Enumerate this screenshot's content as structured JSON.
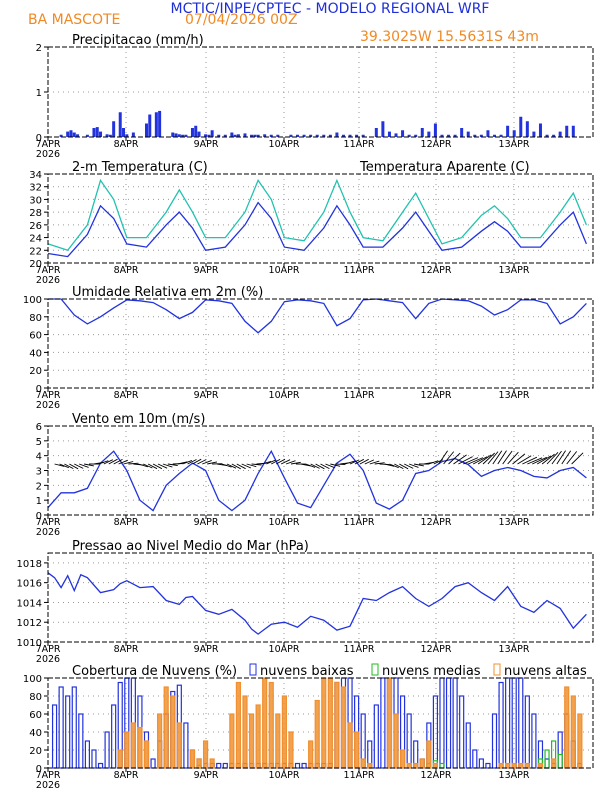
{
  "header": {
    "line1": "MCTIC/INPE/CPTEC - MODELO REGIONAL WRF",
    "station": "BA MASCOTE",
    "run": "07/04/2026 00Z",
    "location": "39.3025W 15.5631S 43m"
  },
  "colors": {
    "header_blue": "#1f2fd8",
    "header_orange": "#f08a24",
    "series_blue": "#2233dd",
    "series_teal": "#22c2b0",
    "cloud_low": "#2233dd",
    "cloud_mid": "#22bb22",
    "cloud_high": "#f09030"
  },
  "x_axis": {
    "labels": [
      "7APR",
      "8APR",
      "9APR",
      "10APR",
      "11APR",
      "12APR",
      "13APR"
    ],
    "year": "2026"
  },
  "chart_data": [
    {
      "type": "bar",
      "title": "Precipitacao (mm/h)",
      "ylim": [
        0,
        2
      ],
      "yticks": [
        0,
        1,
        2
      ],
      "grid": true,
      "x_unit": "hours since 7APR 00Z",
      "x": [
        4,
        6,
        7,
        8,
        9,
        12,
        14,
        15,
        16,
        18,
        19,
        20,
        22,
        23,
        24,
        26,
        30,
        31,
        33,
        34,
        38,
        39,
        40,
        41,
        42,
        44,
        45,
        46,
        48,
        49,
        50,
        52,
        54,
        56,
        57,
        58,
        60,
        62,
        63,
        64,
        66,
        68,
        70,
        74,
        76,
        78,
        80,
        82,
        84,
        86,
        88,
        90,
        92,
        94,
        96,
        100,
        102,
        104,
        106,
        108,
        110,
        112,
        114,
        116,
        118,
        120,
        122,
        124,
        126,
        128,
        130,
        132,
        134,
        136,
        138,
        140,
        142,
        144,
        146,
        148,
        150,
        152,
        154,
        156,
        158,
        160
      ],
      "values": [
        0.05,
        0.12,
        0.15,
        0.1,
        0.06,
        0.05,
        0.2,
        0.22,
        0.12,
        0.06,
        0.05,
        0.35,
        0.55,
        0.2,
        0.06,
        0.1,
        0.3,
        0.5,
        0.55,
        0.58,
        0.1,
        0.08,
        0.06,
        0.05,
        0.05,
        0.2,
        0.25,
        0.12,
        0.06,
        0.05,
        0.15,
        0.05,
        0.05,
        0.1,
        0.05,
        0.06,
        0.08,
        0.05,
        0.05,
        0.05,
        0.06,
        0.05,
        0.05,
        0.05,
        0.05,
        0.05,
        0.05,
        0.05,
        0.05,
        0.05,
        0.1,
        0.05,
        0.05,
        0.05,
        0.05,
        0.2,
        0.35,
        0.12,
        0.08,
        0.15,
        0.05,
        0.05,
        0.2,
        0.12,
        0.3,
        0.05,
        0.05,
        0.05,
        0.2,
        0.12,
        0.05,
        0.05,
        0.15,
        0.05,
        0.05,
        0.25,
        0.15,
        0.45,
        0.35,
        0.12,
        0.3,
        0.05,
        0.05,
        0.12,
        0.25,
        0.25
      ]
    },
    {
      "type": "line",
      "title": "2-m Temperatura (C)",
      "ylim": [
        20,
        34
      ],
      "yticks": [
        20,
        22,
        24,
        26,
        28,
        30,
        32,
        34
      ],
      "grid": true,
      "x_unit": "hours since 7APR 00Z",
      "series": [
        {
          "name": "Temperatura Aparente (C)",
          "color": "#22c2b0",
          "x": [
            0,
            6,
            12,
            16,
            20,
            24,
            30,
            36,
            40,
            44,
            48,
            54,
            60,
            64,
            68,
            72,
            78,
            84,
            88,
            92,
            96,
            102,
            108,
            112,
            116,
            120,
            126,
            132,
            136,
            140,
            144,
            150,
            156,
            160,
            164
          ],
          "y": [
            23,
            22,
            26,
            33,
            30,
            24,
            24,
            28,
            31.5,
            28,
            24,
            24,
            28,
            33,
            30,
            24,
            23.5,
            28,
            33,
            28,
            24,
            23.5,
            28,
            31,
            27,
            23,
            24,
            27.5,
            29,
            27,
            24,
            24,
            28,
            31,
            26
          ]
        },
        {
          "name": "",
          "color": "#2233dd",
          "x": [
            0,
            6,
            12,
            16,
            20,
            24,
            30,
            36,
            40,
            44,
            48,
            54,
            60,
            64,
            68,
            72,
            78,
            84,
            88,
            92,
            96,
            102,
            108,
            112,
            116,
            120,
            126,
            132,
            136,
            140,
            144,
            150,
            156,
            160,
            164
          ],
          "y": [
            21.5,
            21,
            24.5,
            29,
            27,
            23,
            22.5,
            26,
            28,
            25.5,
            22,
            22.5,
            26,
            29.5,
            27,
            22.5,
            22,
            25.5,
            29,
            26,
            22.5,
            22.5,
            25.5,
            28,
            25,
            22,
            22.5,
            25,
            26.5,
            25,
            22.5,
            22.5,
            26,
            28,
            23
          ]
        }
      ]
    },
    {
      "type": "line",
      "title": "Umidade Relativa em 2m (%)",
      "ylim": [
        0,
        100
      ],
      "yticks": [
        0,
        20,
        40,
        60,
        80,
        100
      ],
      "grid": true,
      "x_unit": "hours since 7APR 00Z",
      "series": [
        {
          "name": "",
          "color": "#2233dd",
          "x": [
            0,
            4,
            8,
            12,
            16,
            20,
            24,
            28,
            32,
            36,
            40,
            44,
            48,
            52,
            56,
            60,
            64,
            68,
            72,
            76,
            80,
            84,
            88,
            92,
            96,
            100,
            104,
            108,
            112,
            116,
            120,
            124,
            128,
            132,
            136,
            140,
            144,
            148,
            152,
            156,
            160,
            164
          ],
          "y": [
            100,
            100,
            82,
            72,
            80,
            90,
            99,
            98,
            96,
            88,
            78,
            85,
            99,
            98,
            95,
            75,
            62,
            75,
            97,
            99,
            98,
            95,
            70,
            78,
            99,
            100,
            98,
            96,
            78,
            95,
            100,
            99,
            98,
            92,
            82,
            88,
            99,
            99,
            95,
            72,
            80,
            95
          ]
        }
      ]
    },
    {
      "type": "line",
      "title": "Vento em 10m (m/s)",
      "ylim": [
        0,
        6
      ],
      "yticks": [
        0,
        1,
        2,
        3,
        4,
        5,
        6
      ],
      "grid": true,
      "x_unit": "hours since 7APR 00Z",
      "series": [
        {
          "name": "",
          "color": "#2233dd",
          "x": [
            0,
            4,
            8,
            12,
            16,
            20,
            24,
            28,
            32,
            36,
            40,
            44,
            48,
            52,
            56,
            60,
            64,
            68,
            72,
            76,
            80,
            84,
            88,
            92,
            96,
            100,
            104,
            108,
            112,
            116,
            120,
            124,
            128,
            132,
            136,
            140,
            144,
            148,
            152,
            156,
            160,
            164
          ],
          "y": [
            0.5,
            1.5,
            1.5,
            1.8,
            3.5,
            4.3,
            3,
            1,
            0.3,
            2,
            2.8,
            3.5,
            3,
            1,
            0.3,
            1,
            2.8,
            4.3,
            2.5,
            0.8,
            0.5,
            2,
            3.5,
            4.1,
            3,
            0.8,
            0.4,
            1,
            2.8,
            3,
            3.6,
            3.8,
            3.4,
            2.6,
            3,
            3.2,
            3,
            2.6,
            2.5,
            3,
            3.2,
            2.5
          ]
        }
      ]
    },
    {
      "type": "line",
      "title": "Pressao ao Nivel Medio do Mar (hPa)",
      "ylim": [
        1010,
        1019
      ],
      "yticks": [
        1010,
        1012,
        1014,
        1016,
        1018
      ],
      "grid": true,
      "x_unit": "hours since 7APR 00Z",
      "series": [
        {
          "name": "",
          "color": "#2233dd",
          "x": [
            0,
            2,
            4,
            6,
            8,
            10,
            12,
            16,
            20,
            22,
            24,
            28,
            32,
            36,
            40,
            42,
            44,
            48,
            52,
            56,
            60,
            62,
            64,
            68,
            72,
            76,
            80,
            84,
            88,
            92,
            96,
            100,
            104,
            108,
            112,
            116,
            120,
            124,
            128,
            132,
            136,
            140,
            144,
            148,
            152,
            156,
            160,
            164
          ],
          "y": [
            1017,
            1016.5,
            1015.5,
            1016.7,
            1015.2,
            1016.8,
            1016.5,
            1015,
            1015.3,
            1015.9,
            1016.2,
            1015.5,
            1015.6,
            1014.2,
            1013.8,
            1014.5,
            1014.6,
            1013.2,
            1012.8,
            1013.3,
            1012.2,
            1011.3,
            1010.8,
            1011.8,
            1012,
            1011.5,
            1012.6,
            1012.2,
            1011.2,
            1011.6,
            1014.4,
            1014.2,
            1015,
            1015.6,
            1014.4,
            1013.6,
            1014.4,
            1015.6,
            1016,
            1015,
            1014.2,
            1015.6,
            1013.6,
            1013,
            1014.2,
            1013.4,
            1011.4,
            1012.8
          ]
        }
      ]
    },
    {
      "type": "bar",
      "title": "Cobertura de Nuvens (%)",
      "ylim": [
        0,
        100
      ],
      "yticks": [
        0,
        20,
        40,
        60,
        80,
        100
      ],
      "grid": true,
      "x_unit": "hours since 7APR 00Z",
      "legend": [
        "nuvens baixas",
        "nuvens medias",
        "nuvens altas"
      ],
      "series": [
        {
          "name": "nuvens baixas",
          "color": "#2233dd",
          "x": [
            2,
            4,
            6,
            8,
            10,
            12,
            14,
            16,
            18,
            20,
            22,
            24,
            26,
            28,
            30,
            32,
            34,
            36,
            38,
            40,
            42,
            44,
            46,
            48,
            50,
            52,
            54,
            56,
            58,
            60,
            62,
            64,
            66,
            68,
            70,
            72,
            74,
            76,
            78,
            80,
            82,
            84,
            86,
            88,
            90,
            92,
            94,
            96,
            98,
            100,
            102,
            104,
            106,
            108,
            110,
            112,
            114,
            116,
            118,
            120,
            122,
            124,
            126,
            128,
            130,
            132,
            134,
            136,
            138,
            140,
            142,
            144,
            146,
            148,
            150,
            152,
            154,
            156,
            158,
            160,
            162
          ],
          "values": [
            70,
            90,
            80,
            90,
            60,
            30,
            20,
            5,
            40,
            70,
            95,
            100,
            100,
            80,
            40,
            10,
            30,
            60,
            85,
            92,
            50,
            20,
            10,
            5,
            5,
            5,
            5,
            5,
            5,
            5,
            5,
            5,
            5,
            5,
            5,
            5,
            5,
            5,
            5,
            5,
            5,
            5,
            5,
            95,
            100,
            100,
            80,
            60,
            30,
            70,
            100,
            100,
            100,
            80,
            60,
            30,
            10,
            50,
            80,
            100,
            100,
            100,
            80,
            50,
            20,
            10,
            5,
            60,
            95,
            100,
            100,
            100,
            80,
            60,
            30,
            10,
            5,
            40,
            60,
            30,
            5
          ]
        },
        {
          "name": "nuvens medias",
          "color": "#22bb22",
          "x": [
            46,
            116,
            118,
            120,
            150,
            152,
            154,
            156
          ],
          "values": [
            3,
            5,
            8,
            5,
            10,
            20,
            30,
            15
          ]
        },
        {
          "name": "nuvens altas",
          "color": "#f09030",
          "x": [
            22,
            24,
            26,
            28,
            30,
            34,
            36,
            38,
            40,
            44,
            46,
            48,
            50,
            56,
            58,
            60,
            62,
            64,
            66,
            68,
            70,
            72,
            74,
            80,
            82,
            84,
            86,
            88,
            90,
            92,
            94,
            96,
            98,
            104,
            106,
            108,
            110,
            112,
            114,
            116,
            118,
            138,
            140,
            142,
            144,
            146,
            150,
            154,
            158,
            160,
            162
          ],
          "values": [
            20,
            40,
            50,
            45,
            30,
            60,
            90,
            80,
            50,
            20,
            10,
            30,
            10,
            60,
            95,
            80,
            60,
            70,
            100,
            95,
            60,
            80,
            40,
            30,
            75,
            100,
            100,
            95,
            90,
            50,
            40,
            10,
            5,
            100,
            60,
            20,
            5,
            5,
            10,
            30,
            5,
            5,
            5,
            5,
            5,
            5,
            5,
            10,
            90,
            80,
            60
          ]
        }
      ]
    }
  ]
}
